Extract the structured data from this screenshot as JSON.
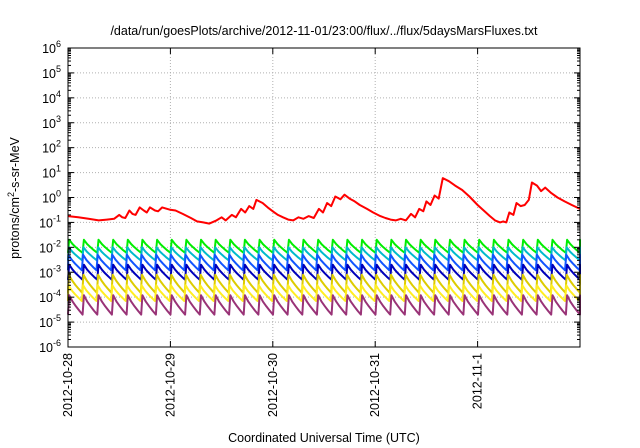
{
  "chart_data": {
    "type": "line",
    "title": "/data/run/goesPlots/archive/2012-11-01/23:00/flux/../flux/5daysMarsFluxes.txt",
    "xlabel": "Coordinated Universal Time (UTC)",
    "ylabel_main": "protons/cm",
    "ylabel_sup": "2",
    "ylabel_rest": "-s-sr-MeV",
    "x_ticks": [
      "2012-10-28",
      "2012-10-29",
      "2012-10-30",
      "2012-10-31",
      "2012-11-1"
    ],
    "xlim_days": [
      0,
      5
    ],
    "y_scale": "log",
    "ylim": [
      1e-06,
      1000000.0
    ],
    "y_ticks": [
      {
        "base": "10",
        "exp": "-6"
      },
      {
        "base": "10",
        "exp": "-5"
      },
      {
        "base": "10",
        "exp": "-4"
      },
      {
        "base": "10",
        "exp": "-3"
      },
      {
        "base": "10",
        "exp": "-2"
      },
      {
        "base": "10",
        "exp": "-1"
      },
      {
        "base": "10",
        "exp": "0"
      },
      {
        "base": "10",
        "exp": "1"
      },
      {
        "base": "10",
        "exp": "2"
      },
      {
        "base": "10",
        "exp": "3"
      },
      {
        "base": "10",
        "exp": "4"
      },
      {
        "base": "10",
        "exp": "5"
      },
      {
        "base": "10",
        "exp": "6"
      }
    ],
    "grid": true,
    "sawtooth_series": [
      {
        "color": "#00ee00",
        "high": 0.02,
        "low": 0.006
      },
      {
        "color": "#00bbcc",
        "high": 0.01,
        "low": 0.003
      },
      {
        "color": "#1155ff",
        "high": 0.005,
        "low": 0.0012
      },
      {
        "color": "#0000bb",
        "high": 0.002,
        "low": 0.0005
      },
      {
        "color": "#ddcc00",
        "high": 0.0008,
        "low": 0.00015
      },
      {
        "color": "#ffee22",
        "high": 0.0003,
        "low": 7e-05
      },
      {
        "color": "#993377",
        "high": 0.00012,
        "low": 2e-05
      }
    ],
    "sawtooth_period_days": 0.143,
    "red_series": {
      "color": "#ff0000",
      "points": [
        [
          0.0,
          0.18
        ],
        [
          0.1,
          0.16
        ],
        [
          0.2,
          0.14
        ],
        [
          0.3,
          0.12
        ],
        [
          0.38,
          0.13
        ],
        [
          0.45,
          0.14
        ],
        [
          0.5,
          0.2
        ],
        [
          0.53,
          0.16
        ],
        [
          0.56,
          0.15
        ],
        [
          0.6,
          0.3
        ],
        [
          0.63,
          0.22
        ],
        [
          0.66,
          0.2
        ],
        [
          0.7,
          0.4
        ],
        [
          0.74,
          0.3
        ],
        [
          0.77,
          0.25
        ],
        [
          0.8,
          0.4
        ],
        [
          0.85,
          0.3
        ],
        [
          0.88,
          0.28
        ],
        [
          0.92,
          0.4
        ],
        [
          0.97,
          0.35
        ],
        [
          1.0,
          0.32
        ],
        [
          1.05,
          0.3
        ],
        [
          1.12,
          0.22
        ],
        [
          1.2,
          0.15
        ],
        [
          1.26,
          0.11
        ],
        [
          1.32,
          0.1
        ],
        [
          1.38,
          0.09
        ],
        [
          1.45,
          0.12
        ],
        [
          1.5,
          0.16
        ],
        [
          1.54,
          0.12
        ],
        [
          1.6,
          0.2
        ],
        [
          1.64,
          0.16
        ],
        [
          1.69,
          0.35
        ],
        [
          1.73,
          0.25
        ],
        [
          1.77,
          0.45
        ],
        [
          1.81,
          0.35
        ],
        [
          1.84,
          0.8
        ],
        [
          1.9,
          0.6
        ],
        [
          1.95,
          0.4
        ],
        [
          2.0,
          0.28
        ],
        [
          2.05,
          0.2
        ],
        [
          2.1,
          0.16
        ],
        [
          2.15,
          0.13
        ],
        [
          2.2,
          0.12
        ],
        [
          2.25,
          0.16
        ],
        [
          2.3,
          0.14
        ],
        [
          2.35,
          0.18
        ],
        [
          2.4,
          0.15
        ],
        [
          2.45,
          0.35
        ],
        [
          2.49,
          0.25
        ],
        [
          2.53,
          0.6
        ],
        [
          2.57,
          0.45
        ],
        [
          2.61,
          1.1
        ],
        [
          2.66,
          0.85
        ],
        [
          2.7,
          1.3
        ],
        [
          2.75,
          0.9
        ],
        [
          2.8,
          0.7
        ],
        [
          2.85,
          0.5
        ],
        [
          2.92,
          0.35
        ],
        [
          2.98,
          0.25
        ],
        [
          3.05,
          0.18
        ],
        [
          3.1,
          0.15
        ],
        [
          3.15,
          0.13
        ],
        [
          3.2,
          0.12
        ],
        [
          3.25,
          0.14
        ],
        [
          3.3,
          0.12
        ],
        [
          3.35,
          0.22
        ],
        [
          3.39,
          0.16
        ],
        [
          3.43,
          0.35
        ],
        [
          3.47,
          0.28
        ],
        [
          3.5,
          0.7
        ],
        [
          3.54,
          0.5
        ],
        [
          3.58,
          1.2
        ],
        [
          3.62,
          0.9
        ],
        [
          3.66,
          6.0
        ],
        [
          3.72,
          4.5
        ],
        [
          3.78,
          3.0
        ],
        [
          3.85,
          2.0
        ],
        [
          3.92,
          1.1
        ],
        [
          4.0,
          0.5
        ],
        [
          4.06,
          0.3
        ],
        [
          4.12,
          0.18
        ],
        [
          4.17,
          0.12
        ],
        [
          4.22,
          0.1
        ],
        [
          4.25,
          0.11
        ],
        [
          4.28,
          0.1
        ],
        [
          4.31,
          0.25
        ],
        [
          4.35,
          0.2
        ],
        [
          4.38,
          0.6
        ],
        [
          4.42,
          0.45
        ],
        [
          4.46,
          0.5
        ],
        [
          4.5,
          0.8
        ],
        [
          4.53,
          4.0
        ],
        [
          4.58,
          3.0
        ],
        [
          4.62,
          1.8
        ],
        [
          4.66,
          2.5
        ],
        [
          4.72,
          1.5
        ],
        [
          4.78,
          1.0
        ],
        [
          4.85,
          0.7
        ],
        [
          4.92,
          0.5
        ],
        [
          5.0,
          0.35
        ]
      ]
    }
  }
}
